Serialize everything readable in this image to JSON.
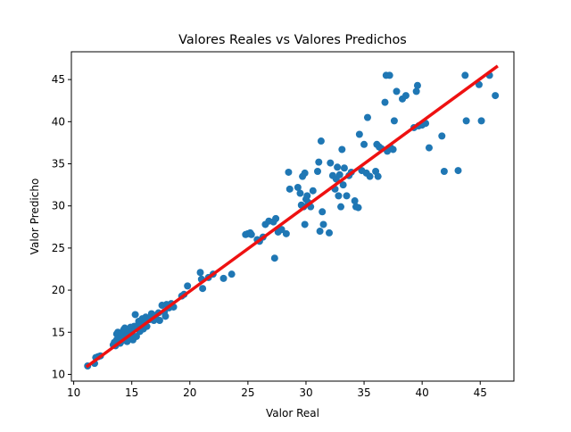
{
  "chart_data": {
    "type": "scatter",
    "title": "Valores Reales vs Valores Predichos",
    "xlabel": "Valor Real",
    "ylabel": "Valor Predicho",
    "xlim": [
      9.8,
      47.9
    ],
    "ylim": [
      9.2,
      48.3
    ],
    "xticks": [
      10,
      15,
      20,
      25,
      30,
      35,
      40,
      45
    ],
    "yticks": [
      10,
      15,
      20,
      25,
      30,
      35,
      40,
      45
    ],
    "grid": false,
    "colors": {
      "points": "#1f77b4",
      "fit_line": "#ee1111"
    },
    "fit_line": {
      "x": [
        11.2,
        46.4
      ],
      "y": [
        11.0,
        46.5
      ]
    },
    "points": [
      [
        11.2,
        11.0
      ],
      [
        11.8,
        11.3
      ],
      [
        11.9,
        12.0
      ],
      [
        12.1,
        12.1
      ],
      [
        12.3,
        12.2
      ],
      [
        13.4,
        13.5
      ],
      [
        13.5,
        13.8
      ],
      [
        13.6,
        13.4
      ],
      [
        13.7,
        14.1
      ],
      [
        13.7,
        14.8
      ],
      [
        13.8,
        15.0
      ],
      [
        13.9,
        14.3
      ],
      [
        14.0,
        13.7
      ],
      [
        14.1,
        14.9
      ],
      [
        14.2,
        14.0
      ],
      [
        14.3,
        15.3
      ],
      [
        14.4,
        14.2
      ],
      [
        14.4,
        15.5
      ],
      [
        14.5,
        14.6
      ],
      [
        14.6,
        13.9
      ],
      [
        14.7,
        14.9
      ],
      [
        14.8,
        15.2
      ],
      [
        14.9,
        15.6
      ],
      [
        15.0,
        14.3
      ],
      [
        15.0,
        15.0
      ],
      [
        15.1,
        14.1
      ],
      [
        15.2,
        15.7
      ],
      [
        15.3,
        15.4
      ],
      [
        15.3,
        17.1
      ],
      [
        15.4,
        14.5
      ],
      [
        15.5,
        15.8
      ],
      [
        15.6,
        16.3
      ],
      [
        15.7,
        15.1
      ],
      [
        15.8,
        15.9
      ],
      [
        15.9,
        16.6
      ],
      [
        16.0,
        15.4
      ],
      [
        16.1,
        16.2
      ],
      [
        16.2,
        16.8
      ],
      [
        16.3,
        15.7
      ],
      [
        16.5,
        16.5
      ],
      [
        16.7,
        17.2
      ],
      [
        16.9,
        16.4
      ],
      [
        17.0,
        17.0
      ],
      [
        17.1,
        16.6
      ],
      [
        17.3,
        17.3
      ],
      [
        17.4,
        16.4
      ],
      [
        17.6,
        18.2
      ],
      [
        17.8,
        17.4
      ],
      [
        17.9,
        16.9
      ],
      [
        18.0,
        18.3
      ],
      [
        18.2,
        17.9
      ],
      [
        18.4,
        18.4
      ],
      [
        18.6,
        18.0
      ],
      [
        19.3,
        19.3
      ],
      [
        19.5,
        19.5
      ],
      [
        19.8,
        20.5
      ],
      [
        20.9,
        22.1
      ],
      [
        21.1,
        20.2
      ],
      [
        21.0,
        21.3
      ],
      [
        21.6,
        21.5
      ],
      [
        22.0,
        21.9
      ],
      [
        22.9,
        21.4
      ],
      [
        23.6,
        21.9
      ],
      [
        24.8,
        26.6
      ],
      [
        25.0,
        26.7
      ],
      [
        25.2,
        26.8
      ],
      [
        25.3,
        26.6
      ],
      [
        25.8,
        26.0
      ],
      [
        26.0,
        25.8
      ],
      [
        26.3,
        26.3
      ],
      [
        26.5,
        27.8
      ],
      [
        26.8,
        28.2
      ],
      [
        27.2,
        28.1
      ],
      [
        27.4,
        28.5
      ],
      [
        27.3,
        23.8
      ],
      [
        27.6,
        26.9
      ],
      [
        27.9,
        27.2
      ],
      [
        28.3,
        26.7
      ],
      [
        28.5,
        34.0
      ],
      [
        28.6,
        32.0
      ],
      [
        29.3,
        32.2
      ],
      [
        29.5,
        31.5
      ],
      [
        29.6,
        30.1
      ],
      [
        29.7,
        33.5
      ],
      [
        29.8,
        29.9
      ],
      [
        29.9,
        27.8
      ],
      [
        29.9,
        33.9
      ],
      [
        30.0,
        30.8
      ],
      [
        30.1,
        31.2
      ],
      [
        30.2,
        30.4
      ],
      [
        30.4,
        29.9
      ],
      [
        30.6,
        31.8
      ],
      [
        31.0,
        34.1
      ],
      [
        31.1,
        35.2
      ],
      [
        31.2,
        27.0
      ],
      [
        31.3,
        37.7
      ],
      [
        31.4,
        29.3
      ],
      [
        31.5,
        27.8
      ],
      [
        32.0,
        26.8
      ],
      [
        32.1,
        35.1
      ],
      [
        32.3,
        33.6
      ],
      [
        32.5,
        32.0
      ],
      [
        32.6,
        33.2
      ],
      [
        32.7,
        34.6
      ],
      [
        32.8,
        31.2
      ],
      [
        32.9,
        33.7
      ],
      [
        33.0,
        29.9
      ],
      [
        33.1,
        36.7
      ],
      [
        33.2,
        32.5
      ],
      [
        33.3,
        34.5
      ],
      [
        33.5,
        31.2
      ],
      [
        33.7,
        33.6
      ],
      [
        33.9,
        34.0
      ],
      [
        34.2,
        30.6
      ],
      [
        34.3,
        29.9
      ],
      [
        34.5,
        29.8
      ],
      [
        34.6,
        38.5
      ],
      [
        34.8,
        34.2
      ],
      [
        35.0,
        37.3
      ],
      [
        35.2,
        33.9
      ],
      [
        35.3,
        40.5
      ],
      [
        35.5,
        33.5
      ],
      [
        36.0,
        34.1
      ],
      [
        36.1,
        37.3
      ],
      [
        36.2,
        33.5
      ],
      [
        36.3,
        37.0
      ],
      [
        36.5,
        36.8
      ],
      [
        36.8,
        42.3
      ],
      [
        36.9,
        45.5
      ],
      [
        37.0,
        36.5
      ],
      [
        37.2,
        45.5
      ],
      [
        37.3,
        36.9
      ],
      [
        37.5,
        36.7
      ],
      [
        37.6,
        40.1
      ],
      [
        37.8,
        43.6
      ],
      [
        38.3,
        42.7
      ],
      [
        38.6,
        43.1
      ],
      [
        39.3,
        39.3
      ],
      [
        39.5,
        43.6
      ],
      [
        39.6,
        44.3
      ],
      [
        39.7,
        39.5
      ],
      [
        40.0,
        39.6
      ],
      [
        40.3,
        39.8
      ],
      [
        40.6,
        36.9
      ],
      [
        41.7,
        38.3
      ],
      [
        41.9,
        34.1
      ],
      [
        43.1,
        34.2
      ],
      [
        43.7,
        45.5
      ],
      [
        43.8,
        40.1
      ],
      [
        44.9,
        44.4
      ],
      [
        45.1,
        40.1
      ],
      [
        45.8,
        45.5
      ],
      [
        46.3,
        43.1
      ]
    ]
  }
}
